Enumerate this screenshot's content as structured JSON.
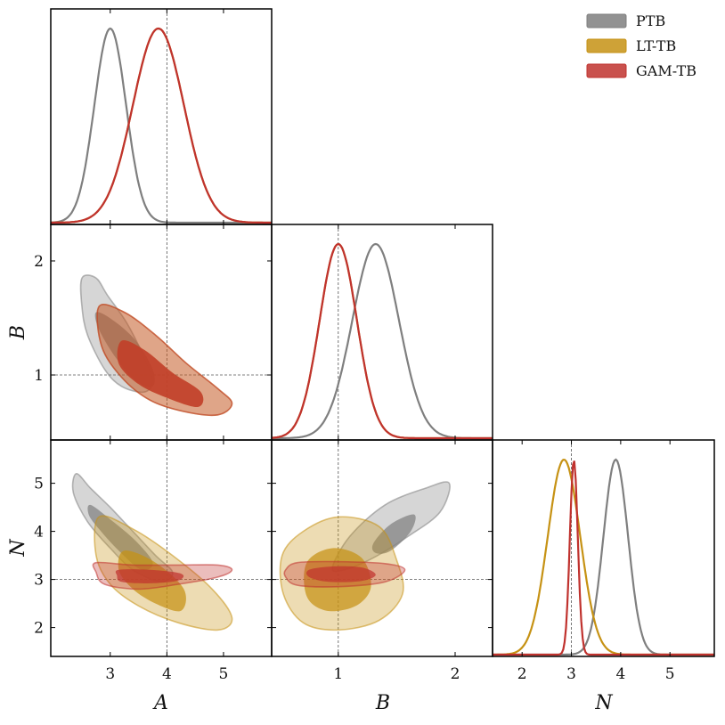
{
  "chart_data": {
    "type": "corner",
    "parameters": [
      {
        "key": "A",
        "label": "A",
        "range": [
          1.95,
          5.85
        ],
        "ticks": [
          3,
          4,
          5
        ],
        "truth": 4
      },
      {
        "key": "B",
        "label": "B",
        "range": [
          0.43,
          2.32
        ],
        "ticks": [
          1,
          2
        ],
        "truth": 1
      },
      {
        "key": "N",
        "label": "N",
        "range": [
          1.4,
          5.9
        ],
        "ticks": [
          2,
          3,
          4,
          5
        ],
        "truth": 3
      }
    ],
    "legend": {
      "placement": "top-right"
    },
    "series": [
      {
        "name": "PTB",
        "color": "#7f7f7f",
        "marginals": {
          "A": {
            "mean": 3.0,
            "sd": 0.28
          },
          "B": {
            "mean": 1.32,
            "sd": 0.2
          },
          "N": {
            "mean": 3.9,
            "sd": 0.25
          }
        },
        "contours": {
          "A-B": {
            "outer": [
              [
                2.5,
                1.85
              ],
              [
                2.75,
                1.85
              ],
              [
                2.95,
                1.7
              ],
              [
                3.3,
                1.45
              ],
              [
                3.6,
                1.15
              ],
              [
                3.75,
                0.95
              ],
              [
                3.6,
                0.85
              ],
              [
                3.2,
                0.9
              ],
              [
                2.9,
                1.05
              ],
              [
                2.6,
                1.35
              ],
              [
                2.5,
                1.6
              ]
            ],
            "inner": [
              [
                2.75,
                1.55
              ],
              [
                3.05,
                1.48
              ],
              [
                3.45,
                1.3
              ],
              [
                3.75,
                1.05
              ],
              [
                3.75,
                0.9
              ],
              [
                3.45,
                0.95
              ],
              [
                3.1,
                1.15
              ],
              [
                2.8,
                1.4
              ]
            ]
          },
          "A-N": {
            "outer": [
              [
                2.4,
                5.2
              ],
              [
                2.65,
                4.9
              ],
              [
                3.0,
                4.5
              ],
              [
                3.4,
                4.0
              ],
              [
                3.8,
                3.5
              ],
              [
                4.1,
                3.15
              ],
              [
                3.9,
                2.95
              ],
              [
                3.4,
                3.2
              ],
              [
                3.0,
                3.65
              ],
              [
                2.6,
                4.2
              ],
              [
                2.35,
                4.8
              ]
            ],
            "inner": [
              [
                2.65,
                4.55
              ],
              [
                3.0,
                4.25
              ],
              [
                3.45,
                3.8
              ],
              [
                3.75,
                3.35
              ],
              [
                3.55,
                3.2
              ],
              [
                3.15,
                3.6
              ],
              [
                2.8,
                4.05
              ],
              [
                2.62,
                4.35
              ]
            ]
          },
          "B-N": {
            "outer": [
              [
                0.95,
                3.25
              ],
              [
                1.1,
                3.9
              ],
              [
                1.4,
                4.55
              ],
              [
                1.75,
                4.9
              ],
              [
                1.95,
                5.0
              ],
              [
                1.87,
                4.4
              ],
              [
                1.6,
                3.9
              ],
              [
                1.3,
                3.45
              ],
              [
                1.05,
                3.2
              ]
            ],
            "inner": [
              [
                1.3,
                3.75
              ],
              [
                1.45,
                4.15
              ],
              [
                1.65,
                4.35
              ],
              [
                1.62,
                4.0
              ],
              [
                1.45,
                3.6
              ],
              [
                1.32,
                3.55
              ]
            ]
          }
        }
      },
      {
        "name": "LT-TB",
        "color": "#c69214",
        "marginals": {
          "A": {
            "mean": 3.85,
            "sd": 0.45
          },
          "B": {
            "mean": 1.0,
            "sd": 0.16
          },
          "N": {
            "mean": 2.85,
            "sd": 0.33
          }
        },
        "contours": {
          "A-B": {
            "outer": [
              [
                2.8,
                1.6
              ],
              [
                3.25,
                1.55
              ],
              [
                3.8,
                1.35
              ],
              [
                4.35,
                1.1
              ],
              [
                4.9,
                0.88
              ],
              [
                5.15,
                0.75
              ],
              [
                4.9,
                0.65
              ],
              [
                4.3,
                0.68
              ],
              [
                3.7,
                0.78
              ],
              [
                3.2,
                0.98
              ],
              [
                2.85,
                1.25
              ]
            ],
            "inner": [
              [
                3.2,
                1.3
              ],
              [
                3.6,
                1.22
              ],
              [
                4.1,
                1.02
              ],
              [
                4.6,
                0.85
              ],
              [
                4.55,
                0.72
              ],
              [
                4.0,
                0.8
              ],
              [
                3.5,
                0.92
              ],
              [
                3.15,
                1.1
              ]
            ]
          },
          "A-N": {
            "outer": [
              [
                2.8,
                4.3
              ],
              [
                3.4,
                4.05
              ],
              [
                4.1,
                3.5
              ],
              [
                4.8,
                2.8
              ],
              [
                5.15,
                2.2
              ],
              [
                4.9,
                1.95
              ],
              [
                4.2,
                2.1
              ],
              [
                3.5,
                2.45
              ],
              [
                3.0,
                2.9
              ],
              [
                2.75,
                3.5
              ]
            ],
            "inner": [
              [
                3.25,
                3.6
              ],
              [
                3.8,
                3.35
              ],
              [
                4.3,
                2.8
              ],
              [
                4.25,
                2.35
              ],
              [
                3.8,
                2.5
              ],
              [
                3.4,
                2.8
              ],
              [
                3.15,
                3.2
              ]
            ]
          },
          "B-N": {
            "outer": [
              [
                0.52,
                3.5
              ],
              [
                0.7,
                4.0
              ],
              [
                1.0,
                4.3
              ],
              [
                1.35,
                4.1
              ],
              [
                1.5,
                3.4
              ],
              [
                1.55,
                2.7
              ],
              [
                1.35,
                2.15
              ],
              [
                1.0,
                1.95
              ],
              [
                0.7,
                2.1
              ],
              [
                0.53,
                2.7
              ]
            ],
            "inner": [
              [
                0.73,
                3.35
              ],
              [
                0.95,
                3.65
              ],
              [
                1.2,
                3.45
              ],
              [
                1.28,
                2.85
              ],
              [
                1.15,
                2.45
              ],
              [
                0.9,
                2.35
              ],
              [
                0.73,
                2.65
              ]
            ]
          }
        }
      },
      {
        "name": "GAM-TB",
        "color": "#c0322e",
        "marginals": {
          "A": {
            "mean": 3.85,
            "sd": 0.45
          },
          "B": {
            "mean": 1.0,
            "sd": 0.16
          },
          "N": {
            "mean": 3.05,
            "sd": 0.08
          }
        },
        "contours": {
          "A-B": {
            "outer": [
              [
                2.8,
                1.6
              ],
              [
                3.25,
                1.55
              ],
              [
                3.8,
                1.35
              ],
              [
                4.35,
                1.1
              ],
              [
                4.9,
                0.88
              ],
              [
                5.15,
                0.75
              ],
              [
                4.9,
                0.65
              ],
              [
                4.3,
                0.68
              ],
              [
                3.7,
                0.78
              ],
              [
                3.2,
                0.98
              ],
              [
                2.85,
                1.25
              ]
            ],
            "inner": [
              [
                3.2,
                1.3
              ],
              [
                3.6,
                1.22
              ],
              [
                4.1,
                1.02
              ],
              [
                4.6,
                0.85
              ],
              [
                4.55,
                0.72
              ],
              [
                4.0,
                0.8
              ],
              [
                3.5,
                0.92
              ],
              [
                3.15,
                1.1
              ]
            ]
          },
          "A-N": {
            "outer": [
              [
                2.75,
                3.35
              ],
              [
                3.4,
                3.3
              ],
              [
                4.2,
                3.3
              ],
              [
                4.9,
                3.3
              ],
              [
                5.15,
                3.2
              ],
              [
                4.9,
                3.05
              ],
              [
                4.2,
                2.9
              ],
              [
                3.5,
                2.8
              ],
              [
                2.9,
                2.9
              ],
              [
                2.75,
                3.15
              ]
            ],
            "inner": [
              [
                3.15,
                3.2
              ],
              [
                3.7,
                3.2
              ],
              [
                4.25,
                3.12
              ],
              [
                4.2,
                2.98
              ],
              [
                3.7,
                2.92
              ],
              [
                3.2,
                2.95
              ],
              [
                3.12,
                3.08
              ]
            ]
          },
          "B-N": {
            "outer": [
              [
                0.55,
                3.2
              ],
              [
                0.65,
                3.35
              ],
              [
                1.0,
                3.37
              ],
              [
                1.4,
                3.33
              ],
              [
                1.57,
                3.2
              ],
              [
                1.4,
                2.95
              ],
              [
                1.0,
                2.85
              ],
              [
                0.65,
                2.88
              ],
              [
                0.55,
                3.05
              ]
            ],
            "inner": [
              [
                0.75,
                3.2
              ],
              [
                0.95,
                3.27
              ],
              [
                1.2,
                3.25
              ],
              [
                1.32,
                3.1
              ],
              [
                1.2,
                2.97
              ],
              [
                0.92,
                2.95
              ],
              [
                0.75,
                3.05
              ]
            ]
          }
        }
      }
    ]
  }
}
